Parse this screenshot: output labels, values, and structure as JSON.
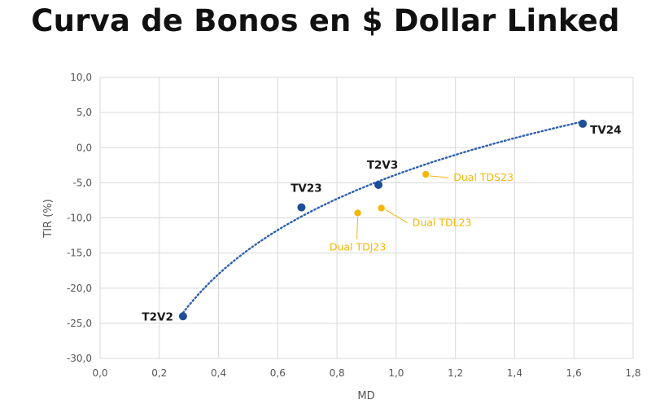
{
  "chart_data": {
    "type": "scatter",
    "title": "Curva de Bonos en $ Dollar Linked",
    "xlabel": "MD",
    "ylabel": "TIR (%)",
    "xlim": [
      0.0,
      1.8
    ],
    "ylim": [
      -30.0,
      10.0
    ],
    "x_ticks": [
      "0,0",
      "0,2",
      "0,4",
      "0,6",
      "0,8",
      "1,0",
      "1,2",
      "1,4",
      "1,6",
      "1,8"
    ],
    "y_ticks": [
      "10,0",
      "5,0",
      "0,0",
      "-5,0",
      "-10,0",
      "-15,0",
      "-20,0",
      "-25,0",
      "-30,0"
    ],
    "grid": true,
    "trendline": "logarithmic (dotted)",
    "series": [
      {
        "color": "#1f4e96",
        "points": [
          {
            "label": "T2V2",
            "x": 0.28,
            "y": -24.0
          },
          {
            "label": "TV23",
            "x": 0.68,
            "y": -8.5
          },
          {
            "label": "T2V3",
            "x": 0.94,
            "y": -5.3
          },
          {
            "label": "TV24",
            "x": 1.63,
            "y": 3.4
          }
        ]
      },
      {
        "color": "#f2b705",
        "points": [
          {
            "label": "Dual TDJ23",
            "x": 0.87,
            "y": -9.3
          },
          {
            "label": "Dual TDL23",
            "x": 0.95,
            "y": -8.6
          },
          {
            "label": "Dual TDS23",
            "x": 1.1,
            "y": -3.8
          }
        ]
      }
    ]
  }
}
